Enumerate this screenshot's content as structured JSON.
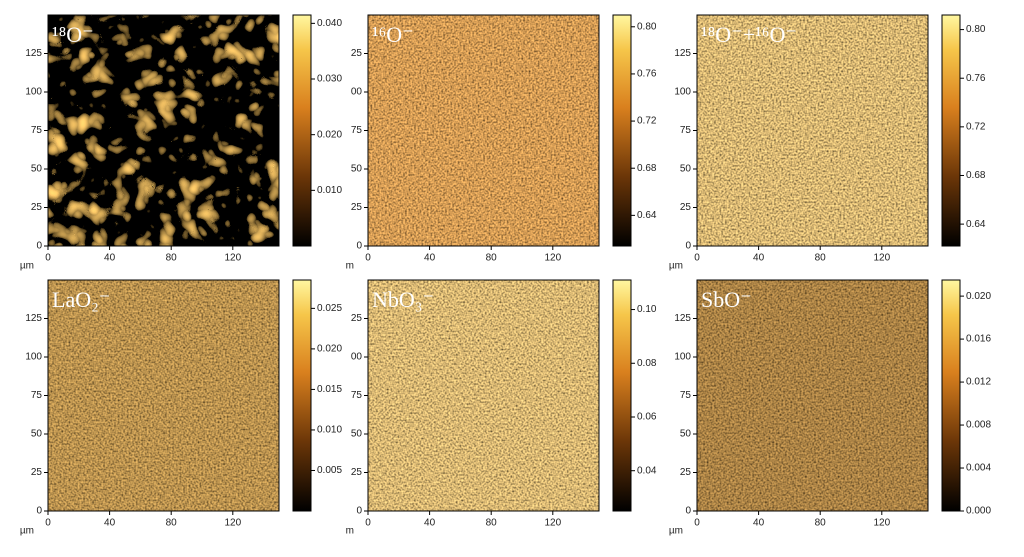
{
  "chart_data": [
    {
      "type": "image",
      "title": "¹⁸O⁻",
      "color": "#c9781c",
      "texture": "streaks",
      "xlabel": "µm",
      "xlim": [
        0,
        150
      ],
      "xticks": [
        0,
        40,
        80,
        120
      ],
      "ylim": [
        0,
        150
      ],
      "yticks": [
        0,
        25,
        50,
        75,
        100,
        125
      ],
      "clim": [
        0,
        0.0415
      ],
      "cticks": [
        {
          "value": 0.01,
          "label": "0.010"
        },
        {
          "value": 0.02,
          "label": "0.020"
        },
        {
          "value": 0.03,
          "label": "0.030"
        },
        {
          "value": 0.04,
          "label": "0.040"
        }
      ]
    },
    {
      "type": "image",
      "title": "¹⁶O⁻",
      "color": "#e0701e",
      "texture": "grain",
      "xlabel": "m",
      "xlim": [
        0,
        150
      ],
      "xticks": [
        0,
        40,
        80,
        120
      ],
      "ylim": [
        0,
        150
      ],
      "yticks": [
        0,
        {
          "value": 25,
          "label": "25"
        },
        50,
        75,
        {
          "value": 100,
          "label": "00"
        },
        {
          "value": 125,
          "label": "25"
        }
      ],
      "clim": [
        0.614,
        0.81
      ],
      "cticks": [
        0.64,
        0.68,
        0.72,
        0.76,
        {
          "value": 0.8,
          "label": "0.80"
        }
      ]
    },
    {
      "type": "image",
      "title": "¹⁸O⁻+¹⁶O⁻",
      "color": "#eba23a",
      "texture": "grain",
      "xlabel": "µm",
      "xlim": [
        0,
        150
      ],
      "xticks": [
        0,
        40,
        80,
        120
      ],
      "ylim": [
        0,
        150
      ],
      "yticks": [
        0,
        25,
        50,
        75,
        100,
        125
      ],
      "clim": [
        0.622,
        0.812
      ],
      "cticks": [
        0.64,
        0.68,
        0.72,
        0.76,
        {
          "value": 0.8,
          "label": "0.80"
        }
      ]
    },
    {
      "type": "image",
      "title": "LaO₂⁻",
      "color": "#a8621a",
      "texture": "grain",
      "xlabel": "µm",
      "xlim": [
        0,
        150
      ],
      "xticks": [
        0,
        40,
        80,
        120
      ],
      "ylim": [
        0,
        150
      ],
      "yticks": [
        0,
        25,
        50,
        75,
        100,
        125
      ],
      "clim": [
        0,
        0.0285
      ],
      "cticks": [
        {
          "value": 0.005,
          "label": "0.005"
        },
        {
          "value": 0.01,
          "label": "0.010"
        },
        {
          "value": 0.015,
          "label": "0.015"
        },
        {
          "value": 0.02,
          "label": "0.020"
        },
        {
          "value": 0.025,
          "label": "0.025"
        }
      ]
    },
    {
      "type": "image",
      "title": "NbO₃⁻",
      "color": "#eba23a",
      "texture": "grain",
      "xlabel": "m",
      "xlim": [
        0,
        150
      ],
      "xticks": [
        0,
        40,
        80,
        120
      ],
      "ylim": [
        0,
        150
      ],
      "yticks": [
        0,
        {
          "value": 25,
          "label": "25"
        },
        50,
        75,
        {
          "value": 100,
          "label": "00"
        },
        {
          "value": 125,
          "label": "25"
        }
      ],
      "clim": [
        0.025,
        0.111
      ],
      "cticks": [
        0.04,
        0.06,
        0.08,
        {
          "value": 0.1,
          "label": "0.10"
        }
      ]
    },
    {
      "type": "image",
      "title": "SbO⁻",
      "color": "#8a4c14",
      "texture": "grain",
      "xlabel": "µm",
      "xlim": [
        0,
        150
      ],
      "xticks": [
        0,
        40,
        80,
        120
      ],
      "ylim": [
        0,
        150
      ],
      "yticks": [
        0,
        25,
        50,
        75,
        100,
        125
      ],
      "clim": [
        0,
        0.0215
      ],
      "cticks": [
        {
          "value": 0,
          "label": "0.000"
        },
        {
          "value": 0.004,
          "label": "0.004"
        },
        {
          "value": 0.008,
          "label": "0.008"
        },
        {
          "value": 0.012,
          "label": "0.012"
        },
        {
          "value": 0.016,
          "label": "0.016"
        },
        {
          "value": 0.02,
          "label": "0.020"
        }
      ]
    }
  ]
}
